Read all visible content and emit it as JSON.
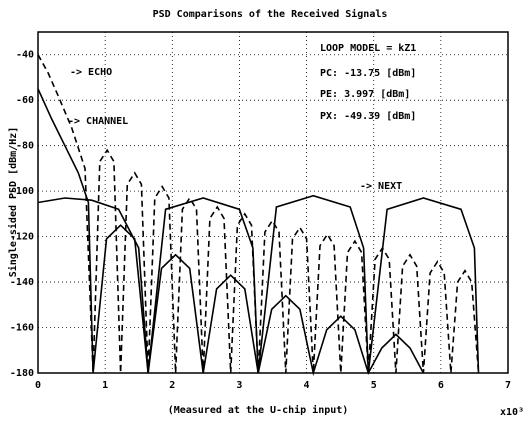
{
  "chart_data": {
    "type": "line",
    "title": "PSD Comparisons of the Received Signals",
    "ylabel": "Single-sided PSD [dBm/Hz]",
    "xlabel": "(Measured at the U-chip input)",
    "xscale_note": "x10³",
    "annotations": [
      "LOOP MODEL = kZ1",
      "PC: -13.75 [dBm]",
      "PE: 3.997 [dBm]",
      "PX: -49.39 [dBm]"
    ],
    "xlim": [
      0,
      7
    ],
    "xticks": [
      0,
      1,
      2,
      3,
      4,
      5,
      6,
      7
    ],
    "ylim": [
      -180,
      -30
    ],
    "yticks": [
      -40,
      -60,
      -80,
      -100,
      -120,
      -140,
      -160,
      -180
    ],
    "grid": true,
    "series": [
      {
        "name": "-> ECHO",
        "color": "#000000",
        "dash": true,
        "x": [
          0,
          0.15,
          0.3,
          0.5,
          0.7,
          0.82,
          0.92,
          1.03,
          1.13,
          1.23,
          1.33,
          1.44,
          1.54,
          1.64,
          1.74,
          1.85,
          1.95,
          2.05,
          2.15,
          2.26,
          2.36,
          2.46,
          2.56,
          2.67,
          2.77,
          2.87,
          2.97,
          3.08,
          3.18,
          3.28,
          3.38,
          3.49,
          3.59,
          3.69,
          3.79,
          3.9,
          4.0,
          4.1,
          4.2,
          4.31,
          4.41,
          4.51,
          4.61,
          4.72,
          4.82,
          4.92,
          5.02,
          5.13,
          5.23,
          5.33,
          5.43,
          5.54,
          5.64,
          5.74,
          5.84,
          5.95,
          6.05,
          6.15,
          6.25,
          6.36,
          6.46,
          6.56
        ],
        "values": [
          -40,
          -48,
          -58,
          -72,
          -90,
          -180,
          -87,
          -82,
          -87,
          -180,
          -97,
          -92,
          -97,
          -180,
          -103,
          -98,
          -103,
          -180,
          -108,
          -103,
          -108,
          -180,
          -112,
          -107,
          -112,
          -180,
          -115,
          -110,
          -115,
          -180,
          -118,
          -113,
          -118,
          -180,
          -121,
          -116,
          -121,
          -180,
          -124,
          -119,
          -124,
          -180,
          -127,
          -122,
          -127,
          -180,
          -130,
          -125,
          -130,
          -180,
          -133,
          -128,
          -133,
          -180,
          -136,
          -131,
          -136,
          -180,
          -140,
          -135,
          -140,
          -180
        ]
      },
      {
        "name": "-> CHANNEL",
        "color": "#000000",
        "dash": false,
        "x": [
          0,
          0.2,
          0.4,
          0.6,
          0.75,
          0.82,
          1.02,
          1.23,
          1.44,
          1.64,
          1.84,
          2.05,
          2.26,
          2.46,
          2.66,
          2.87,
          3.08,
          3.28,
          3.48,
          3.69,
          3.9,
          4.1,
          4.3,
          4.51,
          4.72,
          4.92,
          5.12,
          5.33,
          5.54,
          5.74
        ],
        "values": [
          -55,
          -68,
          -80,
          -92,
          -105,
          -180,
          -121,
          -115,
          -121,
          -180,
          -134,
          -128,
          -134,
          -180,
          -143,
          -137,
          -143,
          -180,
          -152,
          -146,
          -152,
          -180,
          -161,
          -155,
          -161,
          -180,
          -169,
          -163,
          -169,
          -180
        ]
      },
      {
        "name": "-> NEXT",
        "color": "#000000",
        "dash": false,
        "x": [
          0,
          0.4,
          0.8,
          1.2,
          1.5,
          1.64,
          1.9,
          2.46,
          3.0,
          3.2,
          3.28,
          3.55,
          4.1,
          4.65,
          4.85,
          4.92,
          5.2,
          5.74,
          6.3,
          6.5,
          6.56
        ],
        "values": [
          -105,
          -103,
          -104,
          -108,
          -125,
          -180,
          -108,
          -103,
          -108,
          -125,
          -180,
          -107,
          -102,
          -107,
          -125,
          -180,
          -108,
          -103,
          -108,
          -125,
          -180
        ]
      }
    ]
  }
}
